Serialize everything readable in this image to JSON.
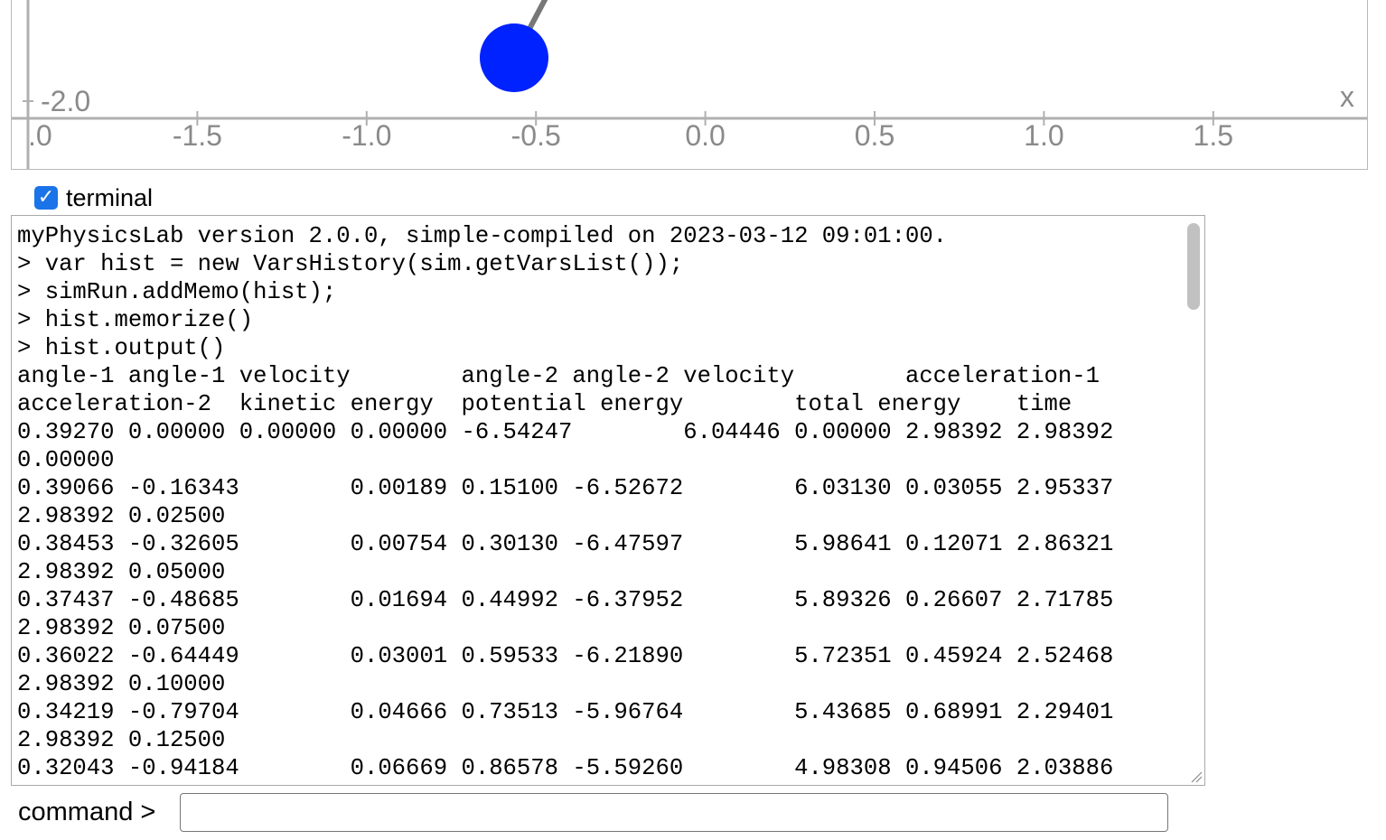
{
  "simulation": {
    "y_axis_tick_label": "-2.0",
    "x_axis_name": "x",
    "x_tick_labels": [
      ".0",
      "-1.5",
      "-1.0",
      "-0.5",
      "0.0",
      "0.5",
      "1.0",
      "1.5"
    ],
    "pendulum_bob_color": "#0022ff",
    "rod_color": "#777777"
  },
  "terminal_toggle": {
    "label": "terminal",
    "checked": true
  },
  "terminal": {
    "lines": [
      "myPhysicsLab version 2.0.0, simple-compiled on 2023-03-12 09:01:00.",
      "> var hist = new VarsHistory(sim.getVarsList());",
      "> simRun.addMemo(hist);",
      "> hist.memorize()",
      "> hist.output()",
      "angle-1 angle-1 velocity        angle-2 angle-2 velocity        acceleration-1",
      "acceleration-2  kinetic energy  potential energy        total energy    time",
      "0.39270 0.00000 0.00000 0.00000 -6.54247        6.04446 0.00000 2.98392 2.98392",
      "0.00000",
      "0.39066 -0.16343        0.00189 0.15100 -6.52672        6.03130 0.03055 2.95337",
      "2.98392 0.02500",
      "0.38453 -0.32605        0.00754 0.30130 -6.47597        5.98641 0.12071 2.86321",
      "2.98392 0.05000",
      "0.37437 -0.48685        0.01694 0.44992 -6.37952        5.89326 0.26607 2.71785",
      "2.98392 0.07500",
      "0.36022 -0.64449        0.03001 0.59533 -6.21890        5.72351 0.45924 2.52468",
      "2.98392 0.10000",
      "0.34219 -0.79704        0.04666 0.73513 -5.96764        5.43685 0.68991 2.29401",
      "2.98392 0.12500",
      "0.32043 -0.94184        0.06669 0.86578 -5.59260        4.98308 0.94506 2.03886"
    ]
  },
  "command": {
    "label": "command >",
    "value": ""
  }
}
